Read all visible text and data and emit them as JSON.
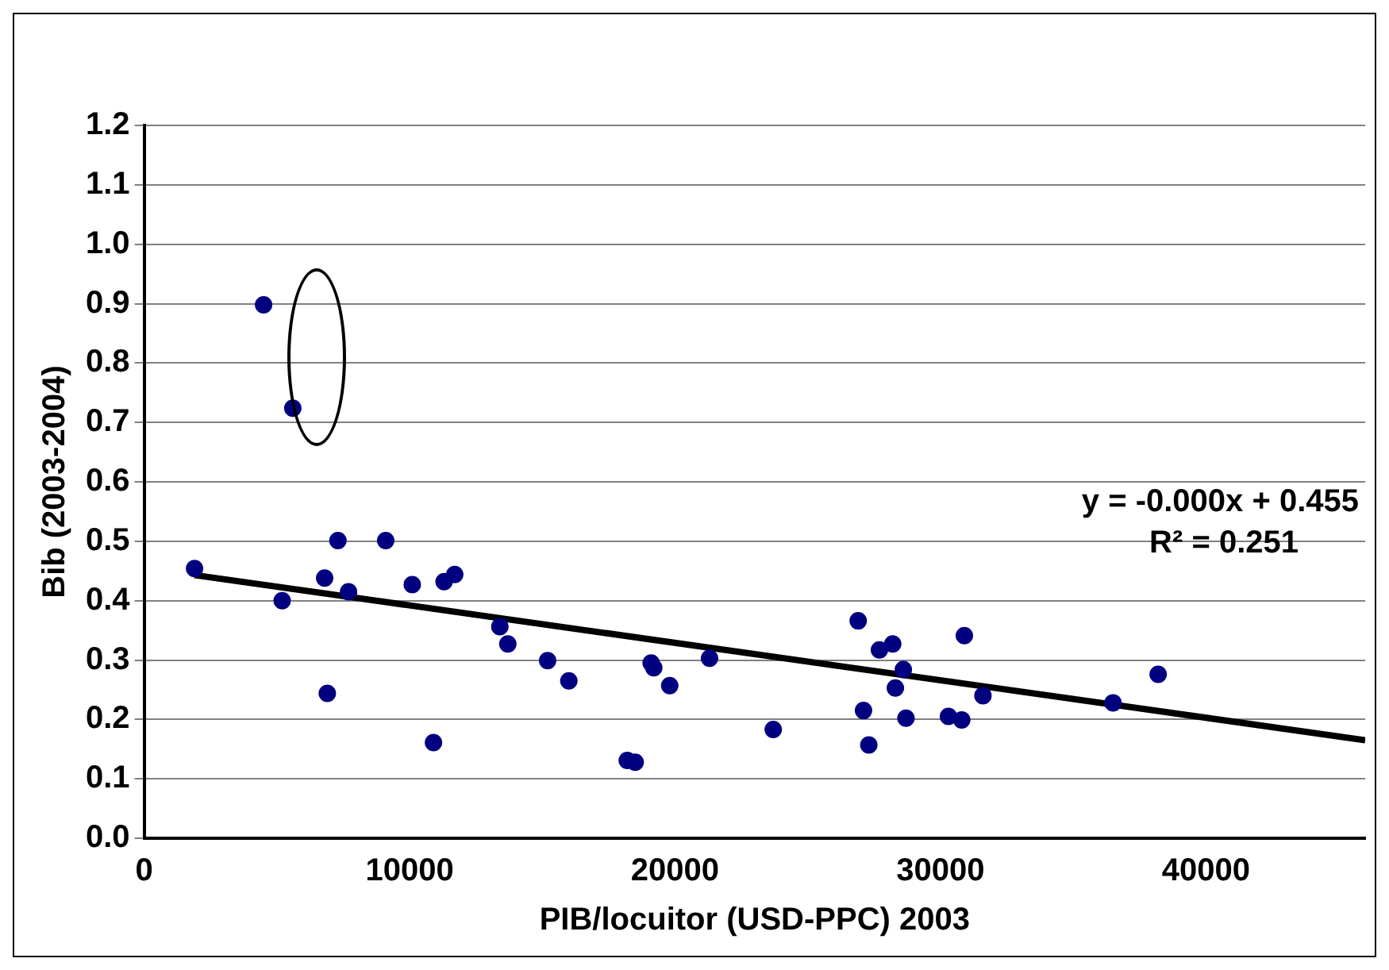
{
  "chart_data": {
    "type": "scatter",
    "xlabel": "PIB/locuitor (USD-PPC) 2003",
    "ylabel": "Bib (2003-2004)",
    "series": [
      {
        "color": "#000080",
        "marker": "circle",
        "x": [
          1900,
          4500,
          5600,
          5200,
          6800,
          6900,
          7300,
          7700,
          9100,
          10100,
          10900,
          11300,
          11700,
          13400,
          13700,
          15200,
          16000,
          18200,
          18500,
          19100,
          19200,
          19800,
          21300,
          23700,
          26900,
          27100,
          27300,
          27700,
          28200,
          28600,
          28300,
          28700,
          30300,
          30800,
          30900,
          31600,
          36500,
          38200
        ],
        "values": [
          0.454,
          0.898,
          0.724,
          0.4,
          0.438,
          0.244,
          0.501,
          0.415,
          0.501,
          0.427,
          0.161,
          0.432,
          0.444,
          0.356,
          0.327,
          0.299,
          0.265,
          0.131,
          0.128,
          0.295,
          0.287,
          0.257,
          0.303,
          0.183,
          0.366,
          0.215,
          0.157,
          0.317,
          0.327,
          0.284,
          0.253,
          0.202,
          0.205,
          0.199,
          0.341,
          0.24,
          0.228,
          0.276
        ]
      },
      {
        "type": "line",
        "color": "#000000",
        "marker": "none",
        "x": [
          1900,
          46000
        ],
        "values": [
          0.443,
          0.165
        ]
      }
    ],
    "annotations": [
      "y = -0.000x + 0.455",
      "R² = 0.251"
    ],
    "xlim": [
      0,
      46000
    ],
    "xticks": [
      0,
      10000,
      20000,
      30000,
      40000
    ],
    "ylim": [
      0,
      1.2
    ],
    "yticks": [
      {
        "value": 0,
        "label": "0.0"
      },
      0.1,
      0.2,
      0.3,
      0.4,
      0.5,
      0.6,
      0.7,
      0.8,
      0.9,
      {
        "value": 1,
        "label": "1.0"
      },
      1.1,
      1.2
    ],
    "grid": "y",
    "legend": false
  }
}
